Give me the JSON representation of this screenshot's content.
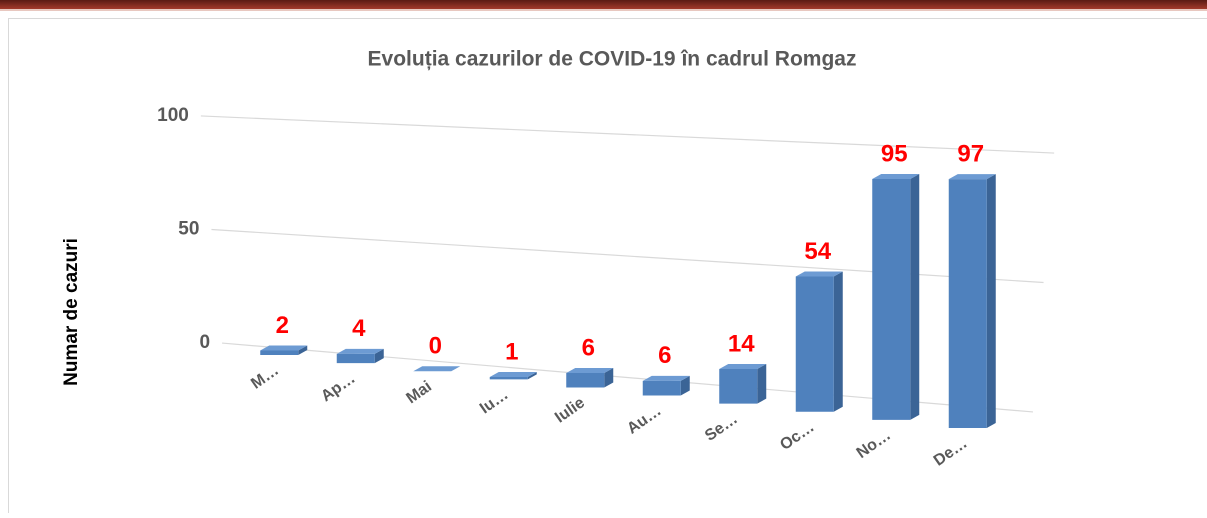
{
  "chart_data": {
    "type": "bar",
    "title": "Evoluția cazurilor de COVID-19 în cadrul Romgaz",
    "y_label": "Numar de cazuri",
    "categories": [
      "M…",
      "Ap…",
      "Mai",
      "Iu…",
      "Iulie",
      "Au…",
      "Se…",
      "Oc…",
      "No…",
      "De…"
    ],
    "values": [
      2,
      4,
      0,
      1,
      6,
      6,
      14,
      54,
      95,
      97
    ],
    "color": "#4f81bd",
    "label_color": "#ff0000",
    "ylim": [
      0,
      100
    ],
    "yticks": [
      0,
      50,
      100
    ],
    "grid": true
  }
}
